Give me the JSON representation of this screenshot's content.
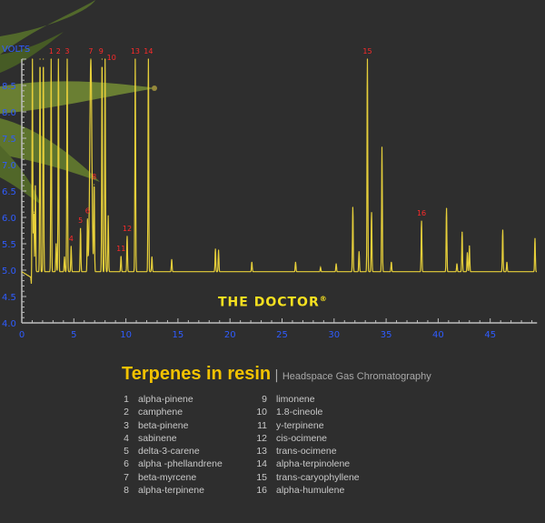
{
  "chart_data": {
    "type": "line",
    "title": "Terpenes in resin",
    "subtitle": "Headspace Gas Chromatography",
    "ylabel": "VOLTS",
    "xlabel": "",
    "xlim": [
      0,
      49.5
    ],
    "ylim": [
      4.0,
      9.0
    ],
    "x_ticks": [
      0,
      5,
      10,
      15,
      20,
      25,
      30,
      35,
      40,
      45
    ],
    "y_ticks": [
      "4.0",
      "4.5",
      "5.0",
      "5.5",
      "6.0",
      "6.5",
      "7.0",
      "7.5",
      "8.0",
      "8.5"
    ],
    "grid": false,
    "baseline": 4.97,
    "line_color": "#e6cf3a",
    "label_color": "#ff2a2a",
    "axis_label_color": "#2f5cff",
    "peaks": [
      {
        "x": 1.02,
        "y": 9.0
      },
      {
        "x": 1.15,
        "y": 6.1
      },
      {
        "x": 1.3,
        "y": 6.6
      },
      {
        "x": 1.75,
        "y": 9.0
      },
      {
        "x": 2.07,
        "y": 9.0
      },
      {
        "x": 2.82,
        "y": 9.0,
        "label": "1"
      },
      {
        "x": 3.3,
        "y": 5.5
      },
      {
        "x": 3.52,
        "y": 9.0,
        "label": "2"
      },
      {
        "x": 4.1,
        "y": 5.25
      },
      {
        "x": 4.36,
        "y": 9.0,
        "label": "3"
      },
      {
        "x": 4.74,
        "y": 5.45,
        "label": "4"
      },
      {
        "x": 5.64,
        "y": 5.79,
        "label": "5"
      },
      {
        "x": 6.31,
        "y": 5.97,
        "label": "6"
      },
      {
        "x": 6.63,
        "y": 9.0,
        "label": "7"
      },
      {
        "x": 6.95,
        "y": 6.62,
        "label": "8"
      },
      {
        "x": 7.71,
        "y": 9.0,
        "label": "9"
      },
      {
        "x": 8.0,
        "y": 9.0,
        "label": "10"
      },
      {
        "x": 8.3,
        "y": 6.03
      },
      {
        "x": 9.53,
        "y": 5.26,
        "label": "11"
      },
      {
        "x": 10.12,
        "y": 5.64,
        "label": "12"
      },
      {
        "x": 10.9,
        "y": 9.0,
        "label": "13"
      },
      {
        "x": 12.16,
        "y": 9.0,
        "label": "14"
      },
      {
        "x": 12.5,
        "y": 5.25
      },
      {
        "x": 14.4,
        "y": 5.2
      },
      {
        "x": 18.6,
        "y": 5.4
      },
      {
        "x": 18.9,
        "y": 5.38
      },
      {
        "x": 22.1,
        "y": 5.15
      },
      {
        "x": 26.3,
        "y": 5.15
      },
      {
        "x": 28.7,
        "y": 5.05
      },
      {
        "x": 30.2,
        "y": 5.12
      },
      {
        "x": 31.8,
        "y": 6.19
      },
      {
        "x": 32.4,
        "y": 5.35
      },
      {
        "x": 33.2,
        "y": 9.0,
        "label": "15"
      },
      {
        "x": 33.6,
        "y": 6.09
      },
      {
        "x": 34.6,
        "y": 7.33
      },
      {
        "x": 35.5,
        "y": 5.15
      },
      {
        "x": 38.4,
        "y": 5.93,
        "label": "16"
      },
      {
        "x": 40.8,
        "y": 6.17
      },
      {
        "x": 41.8,
        "y": 5.12
      },
      {
        "x": 42.3,
        "y": 5.72
      },
      {
        "x": 42.8,
        "y": 5.33
      },
      {
        "x": 43.0,
        "y": 5.46
      },
      {
        "x": 46.2,
        "y": 5.76
      },
      {
        "x": 46.6,
        "y": 5.15
      },
      {
        "x": 49.3,
        "y": 5.6
      }
    ]
  },
  "logo": {
    "text": "THE DOCTOR",
    "mark": "®"
  },
  "legend": {
    "col1": [
      {
        "num": "1",
        "name": "alpha-pinene"
      },
      {
        "num": "2",
        "name": "camphene"
      },
      {
        "num": "3",
        "name": "beta-pinene"
      },
      {
        "num": "4",
        "name": "sabinene"
      },
      {
        "num": "5",
        "name": "delta-3-carene"
      },
      {
        "num": "6",
        "name": "alpha -phellandrene"
      },
      {
        "num": "7",
        "name": "beta-myrcene"
      },
      {
        "num": "8",
        "name": "alpha-terpinene"
      }
    ],
    "col2": [
      {
        "num": "9",
        "name": "limonene"
      },
      {
        "num": "10",
        "name": "1.8-cineole"
      },
      {
        "num": "11",
        "name": "y-terpinene"
      },
      {
        "num": "12",
        "name": "cis-ocimene"
      },
      {
        "num": "13",
        "name": "trans-ocimene"
      },
      {
        "num": "14",
        "name": "alpha-terpinolene"
      },
      {
        "num": "15",
        "name": "trans-caryophyllene"
      },
      {
        "num": "16",
        "name": "alpha-humulene"
      }
    ]
  }
}
